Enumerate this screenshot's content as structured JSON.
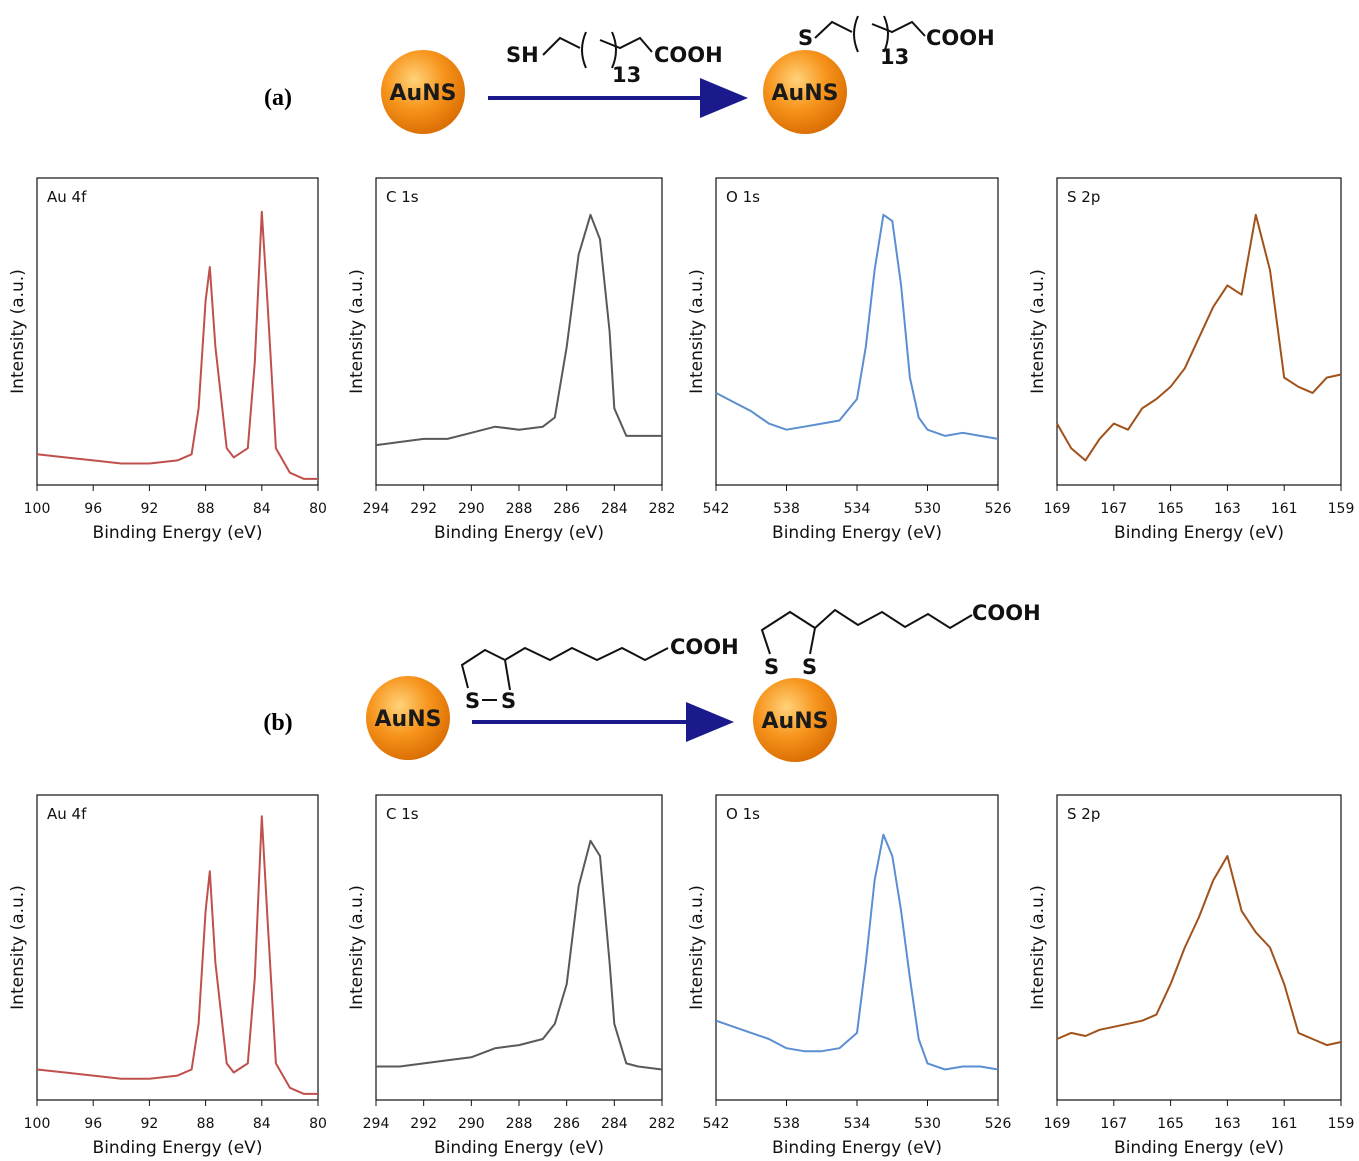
{
  "schemes": [
    {
      "label": "(a)",
      "particle_before": "AuNS",
      "particle_after": "AuNS",
      "ligand": {
        "head": "SH",
        "repeat": "13",
        "tail": "COOH"
      },
      "bound": {
        "head": "S",
        "repeat": "13",
        "tail": "COOH"
      }
    },
    {
      "label": "(b)",
      "particle_before": "AuNS",
      "particle_after": "AuNS",
      "ligand": {
        "sulfur_1": "S",
        "sulfur_2": "S",
        "tail": "COOH"
      },
      "bound": {
        "sulfur_1": "S",
        "sulfur_2": "S",
        "tail": "COOH"
      }
    }
  ],
  "chart_data": [
    {
      "type": "line",
      "title": "Au 4f",
      "xlabel": "Binding Energy (eV)",
      "ylabel": "Intensity (a.u.)",
      "x": [
        100,
        98,
        96,
        94,
        92,
        90,
        89,
        88.5,
        88,
        87.7,
        87.3,
        86.5,
        86,
        85,
        84.5,
        84,
        83.6,
        83,
        82,
        81,
        80
      ],
      "series": [
        {
          "color": "#c0504d",
          "values": [
            10,
            9,
            8,
            7,
            7,
            8,
            10,
            25,
            60,
            71,
            45,
            12,
            9,
            12,
            40,
            89,
            60,
            12,
            4,
            2,
            2
          ]
        }
      ],
      "xlim": [
        100,
        80
      ],
      "xticks": [
        100,
        96,
        92,
        88,
        84,
        80
      ],
      "ylim": [
        0,
        100
      ]
    },
    {
      "type": "line",
      "title": "C 1s",
      "xlabel": "Binding Energy (eV)",
      "ylabel": "Intensity (a.u.)",
      "x": [
        294,
        293,
        292,
        291,
        290,
        289,
        288,
        287,
        286.5,
        286,
        285.5,
        285,
        284.6,
        284.2,
        284,
        283.5,
        283,
        282
      ],
      "series": [
        {
          "color": "#595959",
          "values": [
            13,
            14,
            15,
            15,
            17,
            19,
            18,
            19,
            22,
            45,
            75,
            88,
            80,
            50,
            25,
            16,
            16,
            16
          ]
        }
      ],
      "xlim": [
        294,
        282
      ],
      "xticks": [
        294,
        292,
        290,
        288,
        286,
        284,
        282
      ],
      "ylim": [
        0,
        100
      ]
    },
    {
      "type": "line",
      "title": "O 1s",
      "xlabel": "Binding Energy (eV)",
      "ylabel": "Intensity (a.u.)",
      "x": [
        542,
        541,
        540,
        539,
        538,
        537,
        536,
        535,
        534,
        533.5,
        533,
        532.5,
        532,
        531.5,
        531,
        530.5,
        530,
        529,
        528,
        527,
        526
      ],
      "series": [
        {
          "color": "#5b8fd1",
          "values": [
            30,
            27,
            24,
            20,
            18,
            19,
            20,
            21,
            28,
            45,
            70,
            88,
            86,
            65,
            35,
            22,
            18,
            16,
            17,
            16,
            15
          ]
        }
      ],
      "xlim": [
        542,
        526
      ],
      "xticks": [
        542,
        538,
        534,
        530,
        526
      ],
      "ylim": [
        0,
        100
      ]
    },
    {
      "type": "line",
      "title": "S 2p",
      "xlabel": "Binding Energy (eV)",
      "ylabel": "Intensity (a.u.)",
      "x": [
        169,
        168.5,
        168,
        167.5,
        167,
        166.5,
        166,
        165.5,
        165,
        164.5,
        164,
        163.5,
        163,
        162.5,
        162,
        161.5,
        161,
        160.5,
        160,
        159.5,
        159
      ],
      "series": [
        {
          "color": "#a0521a",
          "values": [
            20,
            12,
            8,
            15,
            20,
            18,
            25,
            28,
            32,
            38,
            48,
            58,
            65,
            62,
            88,
            70,
            35,
            32,
            30,
            35,
            36
          ]
        }
      ],
      "xlim": [
        169,
        159
      ],
      "xticks": [
        169,
        167,
        165,
        163,
        161,
        159
      ],
      "ylim": [
        0,
        100
      ]
    },
    {
      "type": "line",
      "title": "Au 4f",
      "xlabel": "Binding Energy (eV)",
      "ylabel": "Intensity (a.u.)",
      "x": [
        100,
        98,
        96,
        94,
        92,
        90,
        89,
        88.5,
        88,
        87.7,
        87.3,
        86.5,
        86,
        85,
        84.5,
        84,
        83.6,
        83,
        82,
        81,
        80
      ],
      "series": [
        {
          "color": "#c0504d",
          "values": [
            10,
            9,
            8,
            7,
            7,
            8,
            10,
            25,
            62,
            75,
            45,
            12,
            9,
            12,
            40,
            93,
            60,
            12,
            4,
            2,
            2
          ]
        }
      ],
      "xlim": [
        100,
        80
      ],
      "xticks": [
        100,
        96,
        92,
        88,
        84,
        80
      ],
      "ylim": [
        0,
        100
      ]
    },
    {
      "type": "line",
      "title": "C 1s",
      "xlabel": "Binding Energy (eV)",
      "ylabel": "Intensity (a.u.)",
      "x": [
        294,
        293,
        292,
        291,
        290,
        289,
        288,
        287,
        286.5,
        286,
        285.5,
        285,
        284.6,
        284.2,
        284,
        283.5,
        283,
        282
      ],
      "series": [
        {
          "color": "#595959",
          "values": [
            11,
            11,
            12,
            13,
            14,
            17,
            18,
            20,
            25,
            38,
            70,
            85,
            80,
            45,
            25,
            12,
            11,
            10
          ]
        }
      ],
      "xlim": [
        294,
        282
      ],
      "xticks": [
        294,
        292,
        290,
        288,
        286,
        284,
        282
      ],
      "ylim": [
        0,
        100
      ]
    },
    {
      "type": "line",
      "title": "O 1s",
      "xlabel": "Binding Energy (eV)",
      "ylabel": "Intensity (a.u.)",
      "x": [
        542,
        541,
        540,
        539,
        538,
        537,
        536,
        535,
        534,
        533.5,
        533,
        532.5,
        532,
        531.5,
        531,
        530.5,
        530,
        529,
        528,
        527,
        526
      ],
      "series": [
        {
          "color": "#5b8fd1",
          "values": [
            26,
            24,
            22,
            20,
            17,
            16,
            16,
            17,
            22,
            45,
            72,
            87,
            80,
            62,
            40,
            20,
            12,
            10,
            11,
            11,
            10
          ]
        }
      ],
      "xlim": [
        542,
        526
      ],
      "xticks": [
        542,
        538,
        534,
        530,
        526
      ],
      "ylim": [
        0,
        100
      ]
    },
    {
      "type": "line",
      "title": "S 2p",
      "xlabel": "Binding Energy (eV)",
      "ylabel": "Intensity (a.u.)",
      "x": [
        169,
        168.5,
        168,
        167.5,
        167,
        166.5,
        166,
        165.5,
        165,
        164.5,
        164,
        163.5,
        163,
        162.5,
        162,
        161.5,
        161,
        160.5,
        160,
        159.5,
        159
      ],
      "series": [
        {
          "color": "#a0521a",
          "values": [
            20,
            22,
            21,
            23,
            24,
            25,
            26,
            28,
            38,
            50,
            60,
            72,
            80,
            62,
            55,
            50,
            38,
            22,
            20,
            18,
            19
          ]
        }
      ],
      "xlim": [
        169,
        159
      ],
      "xticks": [
        169,
        167,
        165,
        163,
        161,
        159
      ],
      "ylim": [
        0,
        100
      ]
    }
  ]
}
